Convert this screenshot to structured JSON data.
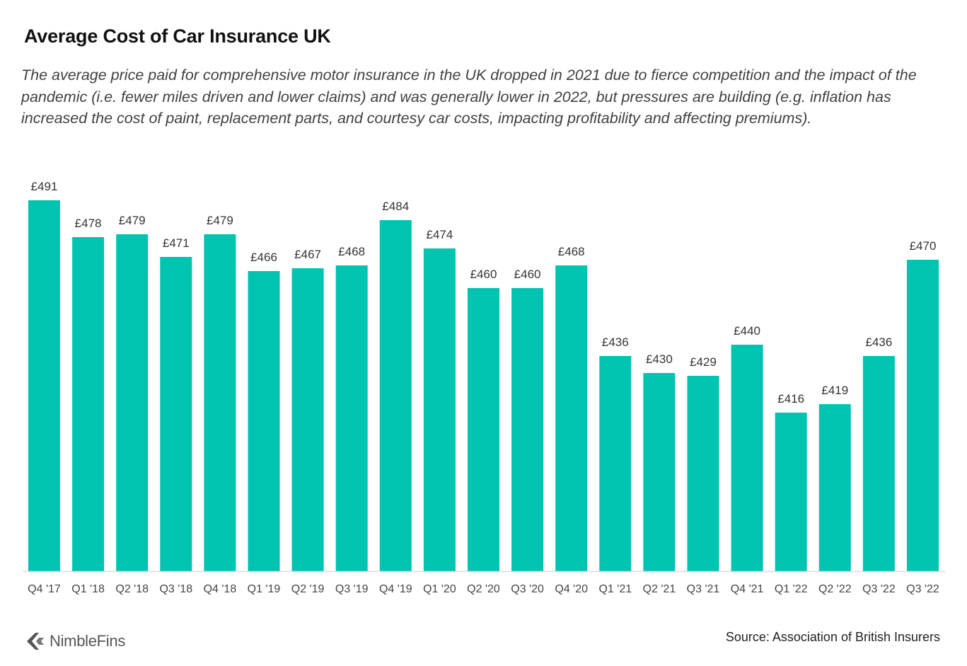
{
  "title": "Average Cost of Car Insurance UK",
  "subtitle": "The average price paid for comprehensive motor insurance in the UK dropped in 2021 due to fierce competition and the impact of the pandemic (i.e. fewer miles driven and lower claims) and was generally lower in 2022, but pressures are building (e.g. inflation has increased the cost of paint, replacement parts, and courtesy car costs, impacting profitability and affecting premiums).",
  "source": "Source: Association of British Insurers",
  "logo": {
    "text": "NimbleFins",
    "icon": "chevron-left-icon"
  },
  "colors": {
    "bar": "#00C4B0",
    "axis": "#D9D9D9"
  },
  "chart_data": {
    "type": "bar",
    "categories": [
      "Q4 '17",
      "Q1 '18",
      "Q2 '18",
      "Q3 '18",
      "Q4 '18",
      "Q1 '19",
      "Q2 '19",
      "Q3 '19",
      "Q4 '19",
      "Q1 '20",
      "Q2 '20",
      "Q3 '20",
      "Q4 '20",
      "Q1 '21",
      "Q2 '21",
      "Q3 '21",
      "Q4 '21",
      "Q1 '22",
      "Q2 '22",
      "Q3 '22",
      "Q3 '22"
    ],
    "values": [
      491,
      478,
      479,
      471,
      479,
      466,
      467,
      468,
      484,
      474,
      460,
      460,
      468,
      436,
      430,
      429,
      440,
      416,
      419,
      436,
      470
    ],
    "value_labels": [
      "£491",
      "£478",
      "£479",
      "£471",
      "£479",
      "£466",
      "£467",
      "£468",
      "£484",
      "£474",
      "£460",
      "£460",
      "£468",
      "£436",
      "£430",
      "£429",
      "£440",
      "£416",
      "£419",
      "£436",
      "£470"
    ],
    "xlabel": "",
    "ylabel": "",
    "ylim": [
      360,
      500
    ],
    "grid": false,
    "legend": false
  }
}
